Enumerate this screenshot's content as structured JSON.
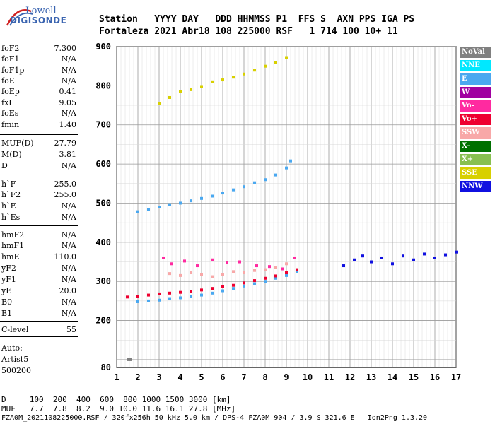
{
  "logo": {
    "top": "Lowell",
    "bottom": "DIGISONDE"
  },
  "header": {
    "line1": "Station   YYYY DAY   DDD HHMMSS P1  FFS S  AXN PPS IGA PS",
    "line2": "Fortaleza 2021 Abr18 108 225000 RSF   1 714 100 10+ 11"
  },
  "params": [
    {
      "label": "foF2",
      "value": "7.300"
    },
    {
      "label": "foF1",
      "value": "N/A"
    },
    {
      "label": "foF1p",
      "value": "N/A"
    },
    {
      "label": "foE",
      "value": "N/A"
    },
    {
      "label": "foEp",
      "value": "0.41"
    },
    {
      "label": "fxI",
      "value": "9.05"
    },
    {
      "label": "foEs",
      "value": "N/A"
    },
    {
      "label": "fmin",
      "value": "1.40"
    },
    {
      "label": "MUF(D)",
      "value": "27.79"
    },
    {
      "label": "M(D)",
      "value": "3.81"
    },
    {
      "label": "D",
      "value": "N/A"
    },
    {
      "label": "h`F",
      "value": "255.0"
    },
    {
      "label": "h`F2",
      "value": "255.0"
    },
    {
      "label": "h`E",
      "value": "N/A"
    },
    {
      "label": "h`Es",
      "value": "N/A"
    },
    {
      "label": "hmF2",
      "value": "N/A"
    },
    {
      "label": "hmF1",
      "value": "N/A"
    },
    {
      "label": "hmE",
      "value": "110.0"
    },
    {
      "label": "yF2",
      "value": "N/A"
    },
    {
      "label": "yF1",
      "value": "N/A"
    },
    {
      "label": "yE",
      "value": "20.0"
    },
    {
      "label": "B0",
      "value": "N/A"
    },
    {
      "label": "B1",
      "value": "N/A"
    },
    {
      "label": "C-level",
      "value": "55"
    }
  ],
  "auto": {
    "line1": "Auto:",
    "line2": "Artist5",
    "line3": "500200"
  },
  "legend": [
    {
      "label": "NoVal",
      "color": "#808080"
    },
    {
      "label": "NNE",
      "color": "#00e8ff"
    },
    {
      "label": "E",
      "color": "#4aa8f0"
    },
    {
      "label": "W",
      "color": "#a000a0"
    },
    {
      "label": "Vo-",
      "color": "#ff2aa0"
    },
    {
      "label": "Vo+",
      "color": "#ee0030"
    },
    {
      "label": "SSW",
      "color": "#f8a8a8"
    },
    {
      "label": "X-",
      "color": "#007000"
    },
    {
      "label": "X+",
      "color": "#88c050"
    },
    {
      "label": "SSE",
      "color": "#d8d000"
    },
    {
      "label": "NNW",
      "color": "#1010e0"
    }
  ],
  "footer": {
    "line1": "D     100  200  400  600  800 1000 1500 3000 [km]",
    "line2": "MUF   7.7  7.8  8.2  9.0 10.0 11.6 16.1 27.8 [MHz]",
    "line3": "FZA0M_2021108225000.RSF / 320fx256h 50 kHz 5.0 km / DPS-4 FZA0M 904 / 3.9 S 321.6 E   Ion2Png 1.3.20"
  },
  "chart_data": {
    "type": "scatter",
    "title": "",
    "xlabel": "",
    "ylabel": "",
    "xlim": [
      1,
      17
    ],
    "ylim": [
      80,
      900
    ],
    "x_ticks": [
      1,
      2,
      3,
      4,
      5,
      6,
      7,
      8,
      9,
      10,
      11,
      12,
      13,
      14,
      15,
      16,
      17
    ],
    "y_ticks": [
      80,
      200,
      300,
      400,
      500,
      600,
      700,
      800,
      900
    ],
    "grid": true,
    "legend_position": "right",
    "series": [
      {
        "name": "E",
        "points": [
          [
            2.0,
            248
          ],
          [
            2.5,
            250
          ],
          [
            3.0,
            252
          ],
          [
            3.5,
            256
          ],
          [
            4.0,
            258
          ],
          [
            4.5,
            262
          ],
          [
            5.0,
            265
          ],
          [
            5.5,
            270
          ],
          [
            6.0,
            276
          ],
          [
            6.5,
            282
          ],
          [
            7.0,
            288
          ],
          [
            7.5,
            294
          ],
          [
            8.0,
            300
          ],
          [
            8.5,
            308
          ],
          [
            9.0,
            315
          ],
          [
            9.5,
            325
          ]
        ]
      },
      {
        "name": "E",
        "points": [
          [
            2.0,
            478
          ],
          [
            2.5,
            484
          ],
          [
            3.0,
            490
          ],
          [
            3.5,
            496
          ],
          [
            4.0,
            500
          ],
          [
            4.5,
            506
          ],
          [
            5.0,
            512
          ],
          [
            5.5,
            518
          ],
          [
            6.0,
            526
          ],
          [
            6.5,
            534
          ],
          [
            7.0,
            542
          ],
          [
            7.5,
            552
          ],
          [
            8.0,
            560
          ],
          [
            8.5,
            572
          ],
          [
            9.0,
            590
          ],
          [
            9.2,
            608
          ]
        ]
      },
      {
        "name": "Vo+",
        "points": [
          [
            1.5,
            260
          ],
          [
            2.0,
            262
          ],
          [
            2.5,
            265
          ],
          [
            3.0,
            268
          ],
          [
            3.5,
            270
          ],
          [
            4.0,
            272
          ],
          [
            4.5,
            275
          ],
          [
            5.0,
            278
          ],
          [
            5.5,
            282
          ],
          [
            6.0,
            286
          ],
          [
            6.5,
            290
          ],
          [
            7.0,
            296
          ],
          [
            7.5,
            302
          ],
          [
            8.0,
            308
          ],
          [
            8.5,
            314
          ],
          [
            9.0,
            322
          ],
          [
            9.5,
            330
          ]
        ]
      },
      {
        "name": "SSE",
        "points": [
          [
            3.0,
            755
          ],
          [
            3.5,
            770
          ],
          [
            4.0,
            785
          ],
          [
            4.5,
            790
          ],
          [
            5.0,
            798
          ],
          [
            5.5,
            810
          ],
          [
            6.0,
            815
          ],
          [
            6.5,
            822
          ],
          [
            7.0,
            830
          ],
          [
            7.5,
            840
          ],
          [
            8.0,
            850
          ],
          [
            8.5,
            860
          ],
          [
            9.0,
            872
          ]
        ]
      },
      {
        "name": "NNW",
        "points": [
          [
            11.7,
            340
          ],
          [
            12.2,
            355
          ],
          [
            12.6,
            365
          ],
          [
            13.0,
            350
          ],
          [
            13.5,
            360
          ],
          [
            14.0,
            345
          ],
          [
            14.5,
            365
          ],
          [
            15.0,
            355
          ],
          [
            15.5,
            370
          ],
          [
            16.0,
            360
          ],
          [
            16.5,
            368
          ],
          [
            17.0,
            375
          ]
        ]
      },
      {
        "name": "Vo-",
        "points": [
          [
            3.2,
            360
          ],
          [
            3.6,
            345
          ],
          [
            4.2,
            352
          ],
          [
            4.8,
            340
          ],
          [
            5.5,
            355
          ],
          [
            6.2,
            348
          ],
          [
            6.8,
            350
          ],
          [
            7.6,
            340
          ],
          [
            8.2,
            338
          ],
          [
            8.8,
            332
          ],
          [
            9.4,
            360
          ]
        ]
      },
      {
        "name": "SSW",
        "points": [
          [
            3.5,
            320
          ],
          [
            4.0,
            315
          ],
          [
            4.5,
            322
          ],
          [
            5.0,
            318
          ],
          [
            5.5,
            312
          ],
          [
            6.0,
            318
          ],
          [
            6.5,
            325
          ],
          [
            7.0,
            322
          ],
          [
            7.5,
            328
          ],
          [
            8.0,
            330
          ],
          [
            8.5,
            335
          ],
          [
            9.0,
            345
          ]
        ]
      },
      {
        "name": "NoVal",
        "points": [
          [
            1.55,
            100
          ],
          [
            1.65,
            100
          ]
        ]
      }
    ]
  }
}
